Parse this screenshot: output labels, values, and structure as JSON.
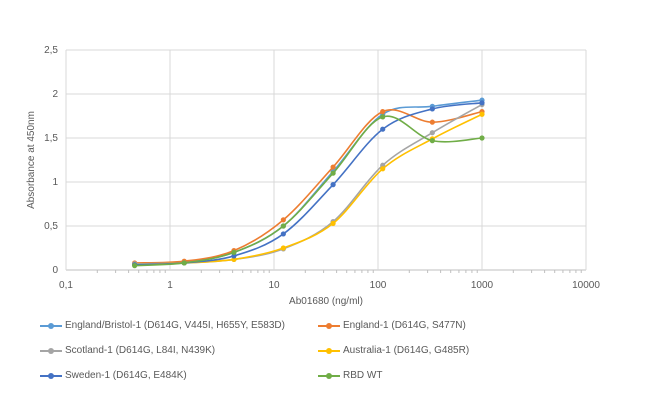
{
  "chart_data": {
    "type": "line",
    "title": "",
    "xlabel": "Ab01680 (ng/ml)",
    "ylabel": "Absorbance at 450nm",
    "xscale": "log",
    "xlim": [
      0.1,
      10000
    ],
    "ylim": [
      0,
      2.5
    ],
    "x_ticks": [
      "0,1",
      "1",
      "10",
      "100",
      "1000",
      "10000"
    ],
    "y_ticks": [
      "0",
      "0,5",
      "1",
      "1,5",
      "2",
      "2,5"
    ],
    "grid": true,
    "legend_position": "bottom",
    "x": [
      0.457,
      1.37,
      4.12,
      12.3,
      37,
      111,
      333,
      1000
    ],
    "series": [
      {
        "name": "England/Bristol-1 (D614G, V445I, H655Y, E583D)",
        "color": "#5B9BD5",
        "values": [
          0.07,
          0.09,
          0.2,
          0.5,
          1.12,
          1.77,
          1.86,
          1.93
        ]
      },
      {
        "name": "England-1 (D614G, S477N)",
        "color": "#ED7D31",
        "values": [
          0.08,
          0.1,
          0.22,
          0.57,
          1.17,
          1.8,
          1.68,
          1.8
        ]
      },
      {
        "name": "Scotland-1 (D614G, L84I, N439K)",
        "color": "#A5A5A5",
        "values": [
          0.07,
          0.08,
          0.12,
          0.24,
          0.55,
          1.19,
          1.56,
          1.88
        ]
      },
      {
        "name": "Australia-1 (D614G, G485R)",
        "color": "#FFC000",
        "values": [
          0.06,
          0.08,
          0.12,
          0.25,
          0.53,
          1.15,
          1.49,
          1.77
        ]
      },
      {
        "name": "Sweden-1 (D614G, E484K)",
        "color": "#4472C4",
        "values": [
          0.06,
          0.08,
          0.16,
          0.41,
          0.97,
          1.6,
          1.83,
          1.9
        ]
      },
      {
        "name": "RBD WT",
        "color": "#70AD47",
        "values": [
          0.05,
          0.08,
          0.2,
          0.5,
          1.1,
          1.74,
          1.47,
          1.5
        ]
      }
    ]
  }
}
